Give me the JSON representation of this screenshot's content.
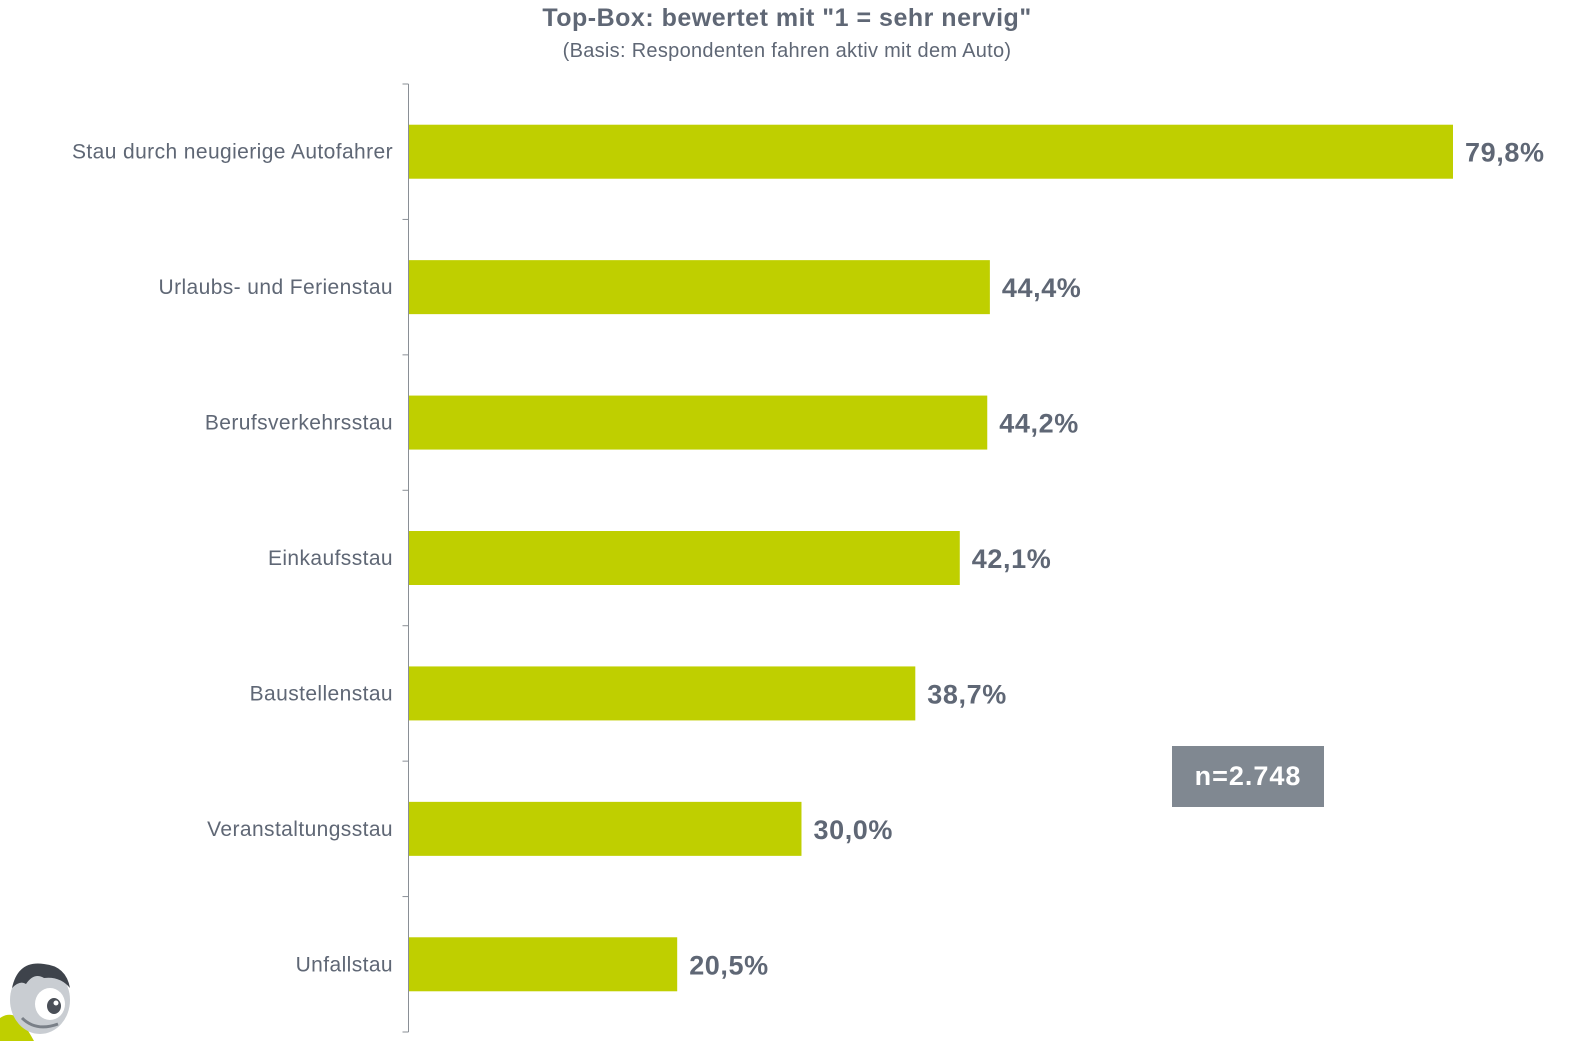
{
  "title": "Top-Box: bewertet mit \"1 = sehr nervig\"",
  "subtitle": "(Basis: Respondenten fahren aktiv mit dem Auto)",
  "sample_size": "n=2.748",
  "colors": {
    "bar": "#bfcf00",
    "text": "#5f6775",
    "badge": "#808891"
  },
  "chart_data": {
    "type": "bar",
    "orientation": "horizontal",
    "title": "Top-Box: bewertet mit \"1 = sehr nervig\"",
    "subtitle": "(Basis: Respondenten fahren aktiv mit dem Auto)",
    "categories": [
      "Stau durch neugierige Autofahrer",
      "Urlaubs- und Ferienstau",
      "Berufsverkehrsstau",
      "Einkaufsstau",
      "Baustellenstau",
      "Veranstaltungsstau",
      "Unfallstau"
    ],
    "values": [
      79.8,
      44.4,
      44.2,
      42.1,
      38.7,
      30.0,
      20.5
    ],
    "value_labels": [
      "79,8%",
      "44,4%",
      "44,2%",
      "42,1%",
      "38,7%",
      "30,0%",
      "20,5%"
    ],
    "unit": "%",
    "xlim": [
      0,
      80
    ],
    "grid": false,
    "legend": "none"
  }
}
